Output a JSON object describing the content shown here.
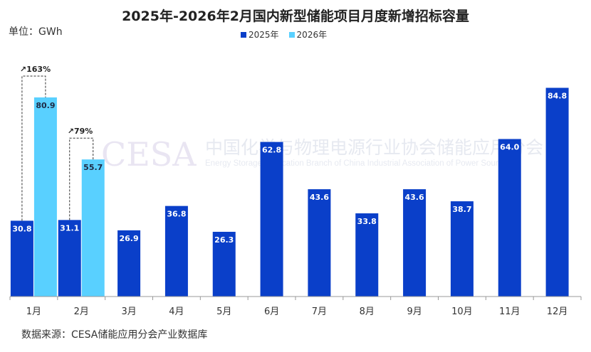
{
  "title": "2025年-2026年2月国内新型储能项目月度新增招标容量",
  "unit_label": "单位：GWh",
  "source": "数据来源：CESA储能应用分会产业数据库",
  "watermark": {
    "logo": "CESA",
    "line1": "中国化学与物理电源行业协会储能应用分会",
    "line2": "Energy Storage Application Branch of China Industrial Association of Power Sources"
  },
  "colors": {
    "series2025": "#0a3fc9",
    "series2026": "#59d0ff"
  },
  "chart_data": {
    "type": "bar",
    "title": "2025年-2026年2月国内新型储能项目月度新增招标容量",
    "xlabel": "",
    "ylabel": "单位：GWh",
    "ylim": [
      0,
      92
    ],
    "grid": false,
    "legend_position": "top",
    "categories": [
      "1月",
      "2月",
      "3月",
      "4月",
      "5月",
      "6月",
      "7月",
      "8月",
      "9月",
      "10月",
      "11月",
      "12月"
    ],
    "series": [
      {
        "name": "2025年",
        "values": [
          30.8,
          31.1,
          26.9,
          36.8,
          26.3,
          62.8,
          43.6,
          33.8,
          43.6,
          38.7,
          64.0,
          84.8
        ]
      },
      {
        "name": "2026年",
        "values": [
          80.9,
          55.7,
          null,
          null,
          null,
          null,
          null,
          null,
          null,
          null,
          null,
          null
        ]
      }
    ],
    "value_labels_2025": [
      "30.8",
      "31.1",
      "26.9",
      "36.8",
      "26.3",
      "62.8",
      "43.6",
      "33.8",
      "43.6",
      "38.7",
      "64.0",
      "84.8"
    ],
    "value_labels_2026": [
      "80.9",
      "55.7"
    ],
    "annotations": [
      {
        "category": "1月",
        "text": "↗163%"
      },
      {
        "category": "2月",
        "text": "↗79%"
      }
    ]
  }
}
